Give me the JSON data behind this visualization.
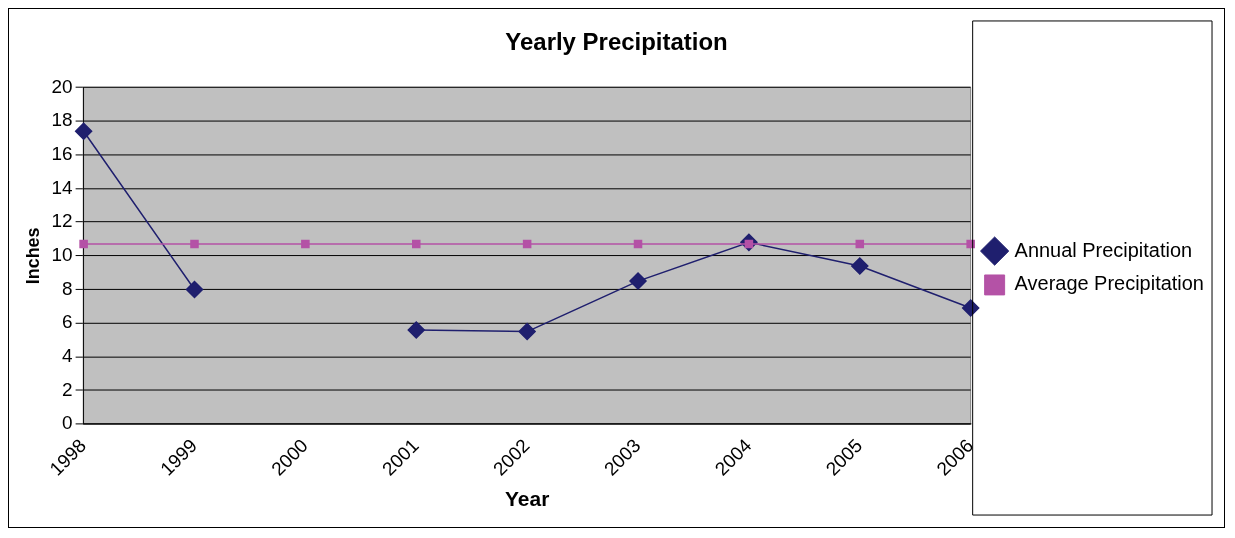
{
  "chart_data": {
    "type": "line",
    "title": "Yearly Precipitation",
    "xlabel": "Year",
    "ylabel": "Inches",
    "categories": [
      "1998",
      "1999",
      "2000",
      "2001",
      "2002",
      "2003",
      "2004",
      "2005",
      "2006"
    ],
    "series": [
      {
        "name": "Annual Precipitation",
        "color": "#1f1f6e",
        "marker": "diamond",
        "values": [
          17.4,
          8.0,
          null,
          5.6,
          5.5,
          8.5,
          10.8,
          9.4,
          6.9
        ]
      },
      {
        "name": "Average Precipitation",
        "color": "#b452a6",
        "marker": "square",
        "values": [
          10.7,
          10.7,
          10.7,
          10.7,
          10.7,
          10.7,
          10.7,
          10.7,
          10.7
        ]
      }
    ],
    "ylim": [
      0,
      20
    ],
    "yticks": [
      0,
      2,
      4,
      6,
      8,
      10,
      12,
      14,
      16,
      18,
      20
    ],
    "grid": "y",
    "legend": "right"
  }
}
